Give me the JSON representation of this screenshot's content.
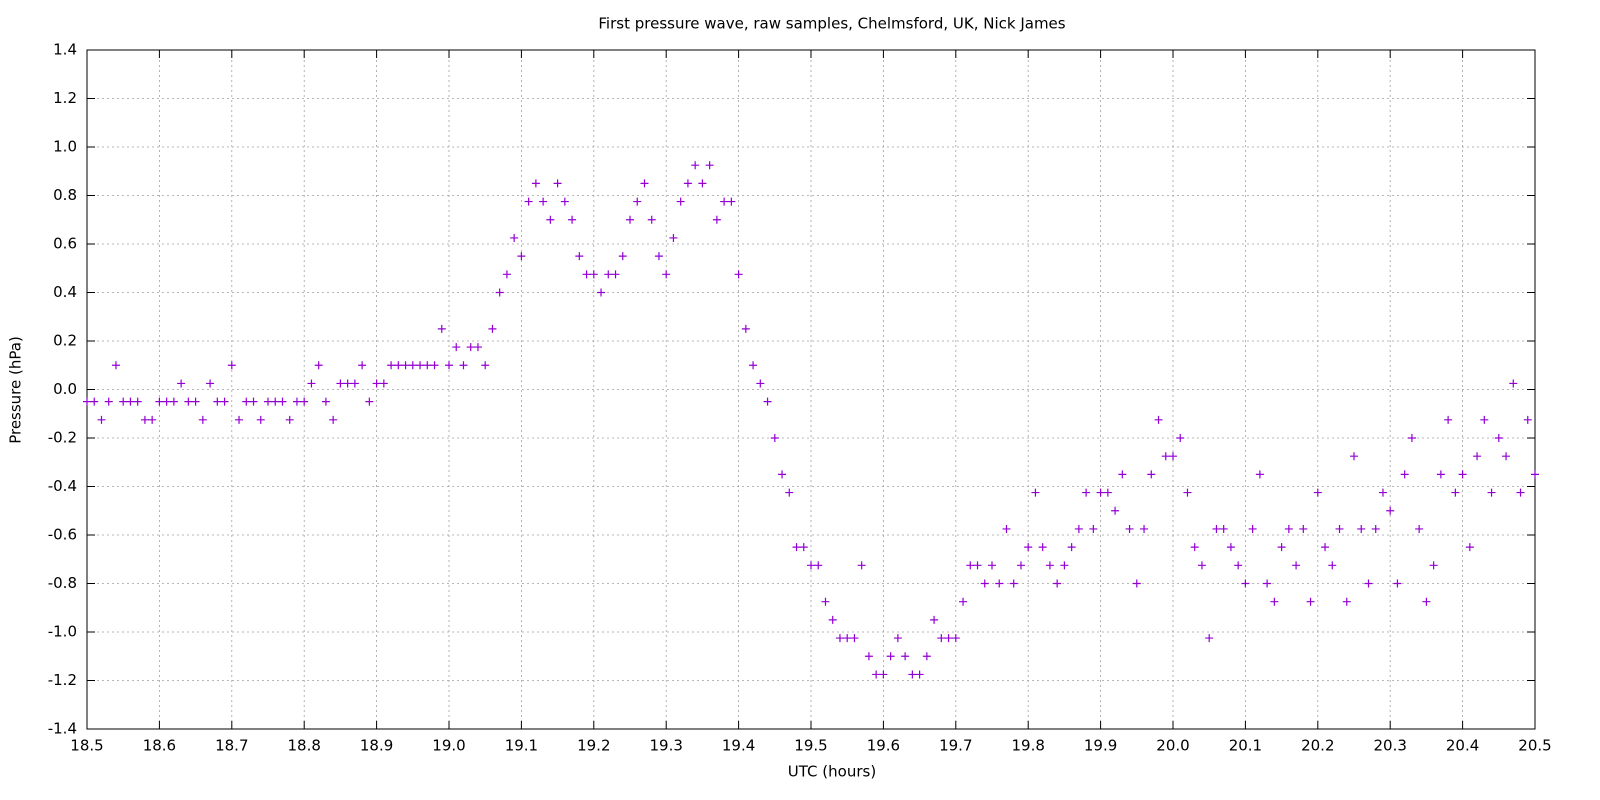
{
  "chart_data": {
    "type": "scatter",
    "title": "First pressure wave, raw samples, Chelmsford, UK, Nick James",
    "x_label": "UTC (hours)",
    "y_label": "Pressure (hPa)",
    "xlim": [
      18.5,
      20.5
    ],
    "xticks": [
      18.5,
      18.6,
      18.7,
      18.8,
      18.9,
      {
        "value": 19,
        "label": "19.0"
      },
      19.1,
      19.2,
      19.3,
      19.4,
      19.5,
      19.6,
      19.7,
      19.8,
      19.9,
      {
        "value": 20,
        "label": "20.0"
      },
      20.1,
      20.2,
      20.3,
      20.4,
      20.5
    ],
    "ylim": [
      -1.4,
      1.4
    ],
    "yticks": [
      -1.4,
      -1.2,
      {
        "value": -1,
        "label": "-1.0"
      },
      -0.8,
      -0.6,
      -0.4,
      -0.2,
      {
        "value": 0,
        "label": "0.0"
      },
      0.2,
      0.4,
      0.6,
      0.8,
      {
        "value": 1,
        "label": "1.0"
      },
      1.2,
      1.4
    ],
    "grid": true,
    "color": "#9400d3",
    "x": [
      18.5,
      18.51,
      18.52,
      18.53,
      18.54,
      18.55,
      18.56,
      18.57,
      18.58,
      18.59,
      18.6,
      18.61,
      18.62,
      18.63,
      18.64,
      18.65,
      18.66,
      18.67,
      18.68,
      18.69,
      18.7,
      18.71,
      18.72,
      18.73,
      18.74,
      18.75,
      18.76,
      18.77,
      18.78,
      18.79,
      18.8,
      18.81,
      18.82,
      18.83,
      18.84,
      18.85,
      18.86,
      18.87,
      18.88,
      18.89,
      18.9,
      18.91,
      18.92,
      18.93,
      18.94,
      18.95,
      18.96,
      18.97,
      18.98,
      18.99,
      19.0,
      19.01,
      19.02,
      19.03,
      19.04,
      19.05,
      19.06,
      19.07,
      19.08,
      19.09,
      19.1,
      19.11,
      19.12,
      19.13,
      19.14,
      19.15,
      19.16,
      19.17,
      19.18,
      19.19,
      19.2,
      19.21,
      19.22,
      19.23,
      19.24,
      19.25,
      19.26,
      19.27,
      19.28,
      19.29,
      19.3,
      19.31,
      19.32,
      19.33,
      19.34,
      19.35,
      19.36,
      19.37,
      19.38,
      19.39,
      19.4,
      19.41,
      19.42,
      19.43,
      19.44,
      19.45,
      19.46,
      19.47,
      19.48,
      19.49,
      19.5,
      19.51,
      19.52,
      19.53,
      19.54,
      19.55,
      19.56,
      19.57,
      19.58,
      19.59,
      19.6,
      19.61,
      19.62,
      19.63,
      19.64,
      19.65,
      19.66,
      19.67,
      19.68,
      19.69,
      19.7,
      19.71,
      19.72,
      19.73,
      19.74,
      19.75,
      19.76,
      19.77,
      19.78,
      19.79,
      19.8,
      19.81,
      19.82,
      19.83,
      19.84,
      19.85,
      19.86,
      19.87,
      19.88,
      19.89,
      19.9,
      19.91,
      19.92,
      19.93,
      19.94,
      19.95,
      19.96,
      19.97,
      19.98,
      19.99,
      20.0,
      20.01,
      20.02,
      20.03,
      20.04,
      20.05,
      20.06,
      20.07,
      20.08,
      20.09,
      20.1,
      20.11,
      20.12,
      20.13,
      20.14,
      20.15,
      20.16,
      20.17,
      20.18,
      20.19,
      20.2,
      20.21,
      20.22,
      20.23,
      20.24,
      20.25,
      20.26,
      20.27,
      20.28,
      20.29,
      20.3,
      20.31,
      20.32,
      20.33,
      20.34,
      20.35,
      20.36,
      20.37,
      20.38,
      20.39,
      20.4,
      20.41,
      20.42,
      20.43,
      20.44,
      20.45,
      20.46,
      20.47,
      20.48,
      20.49,
      20.5
    ],
    "values": [
      -0.05,
      -0.05,
      -0.125,
      -0.05,
      0.1,
      -0.05,
      -0.05,
      -0.05,
      -0.125,
      -0.125,
      -0.05,
      -0.05,
      -0.05,
      0.025,
      -0.05,
      -0.05,
      -0.125,
      0.025,
      -0.05,
      -0.05,
      0.1,
      -0.125,
      -0.05,
      -0.05,
      -0.125,
      -0.05,
      -0.05,
      -0.05,
      -0.125,
      -0.05,
      -0.05,
      0.025,
      0.1,
      -0.05,
      -0.125,
      0.025,
      0.025,
      0.025,
      0.1,
      -0.05,
      0.025,
      0.025,
      0.1,
      0.1,
      0.1,
      0.1,
      0.1,
      0.1,
      0.1,
      0.25,
      0.1,
      0.175,
      0.1,
      0.175,
      0.175,
      0.1,
      0.25,
      0.4,
      0.475,
      0.625,
      0.55,
      0.775,
      0.85,
      0.775,
      0.7,
      0.85,
      0.775,
      0.7,
      0.55,
      0.475,
      0.475,
      0.4,
      0.475,
      0.475,
      0.55,
      0.7,
      0.775,
      0.85,
      0.7,
      0.55,
      0.475,
      0.625,
      0.775,
      0.85,
      0.925,
      0.85,
      0.925,
      0.7,
      0.775,
      0.775,
      0.475,
      0.25,
      0.1,
      0.025,
      -0.05,
      -0.2,
      -0.35,
      -0.425,
      -0.65,
      -0.65,
      -0.725,
      -0.725,
      -0.875,
      -0.95,
      -1.025,
      -1.025,
      -1.025,
      -0.725,
      -1.1,
      -1.175,
      -1.175,
      -1.1,
      -1.025,
      -1.1,
      -1.175,
      -1.175,
      -1.1,
      -0.95,
      -1.025,
      -1.025,
      -1.025,
      -0.875,
      -0.725,
      -0.725,
      -0.8,
      -0.725,
      -0.8,
      -0.575,
      -0.8,
      -0.725,
      -0.65,
      -0.425,
      -0.65,
      -0.725,
      -0.8,
      -0.725,
      -0.65,
      -0.575,
      -0.425,
      -0.575,
      -0.425,
      -0.425,
      -0.5,
      -0.35,
      -0.575,
      -0.8,
      -0.575,
      -0.35,
      -0.125,
      -0.275,
      -0.275,
      -0.2,
      -0.425,
      -0.65,
      -0.725,
      -1.025,
      -0.575,
      -0.575,
      -0.65,
      -0.725,
      -0.8,
      -0.575,
      -0.35,
      -0.8,
      -0.875,
      -0.65,
      -0.575,
      -0.725,
      -0.575,
      -0.875,
      -0.425,
      -0.65,
      -0.725,
      -0.575,
      -0.875,
      -0.275,
      -0.575,
      -0.8,
      -0.575,
      -0.425,
      -0.5,
      -0.8,
      -0.35,
      -0.2,
      -0.575,
      -0.875,
      -0.725,
      -0.35,
      -0.125,
      -0.425,
      -0.35,
      -0.65,
      -0.275,
      -0.125,
      -0.425,
      -0.2,
      -0.275,
      0.025,
      -0.425,
      -0.125,
      -0.35
    ]
  }
}
